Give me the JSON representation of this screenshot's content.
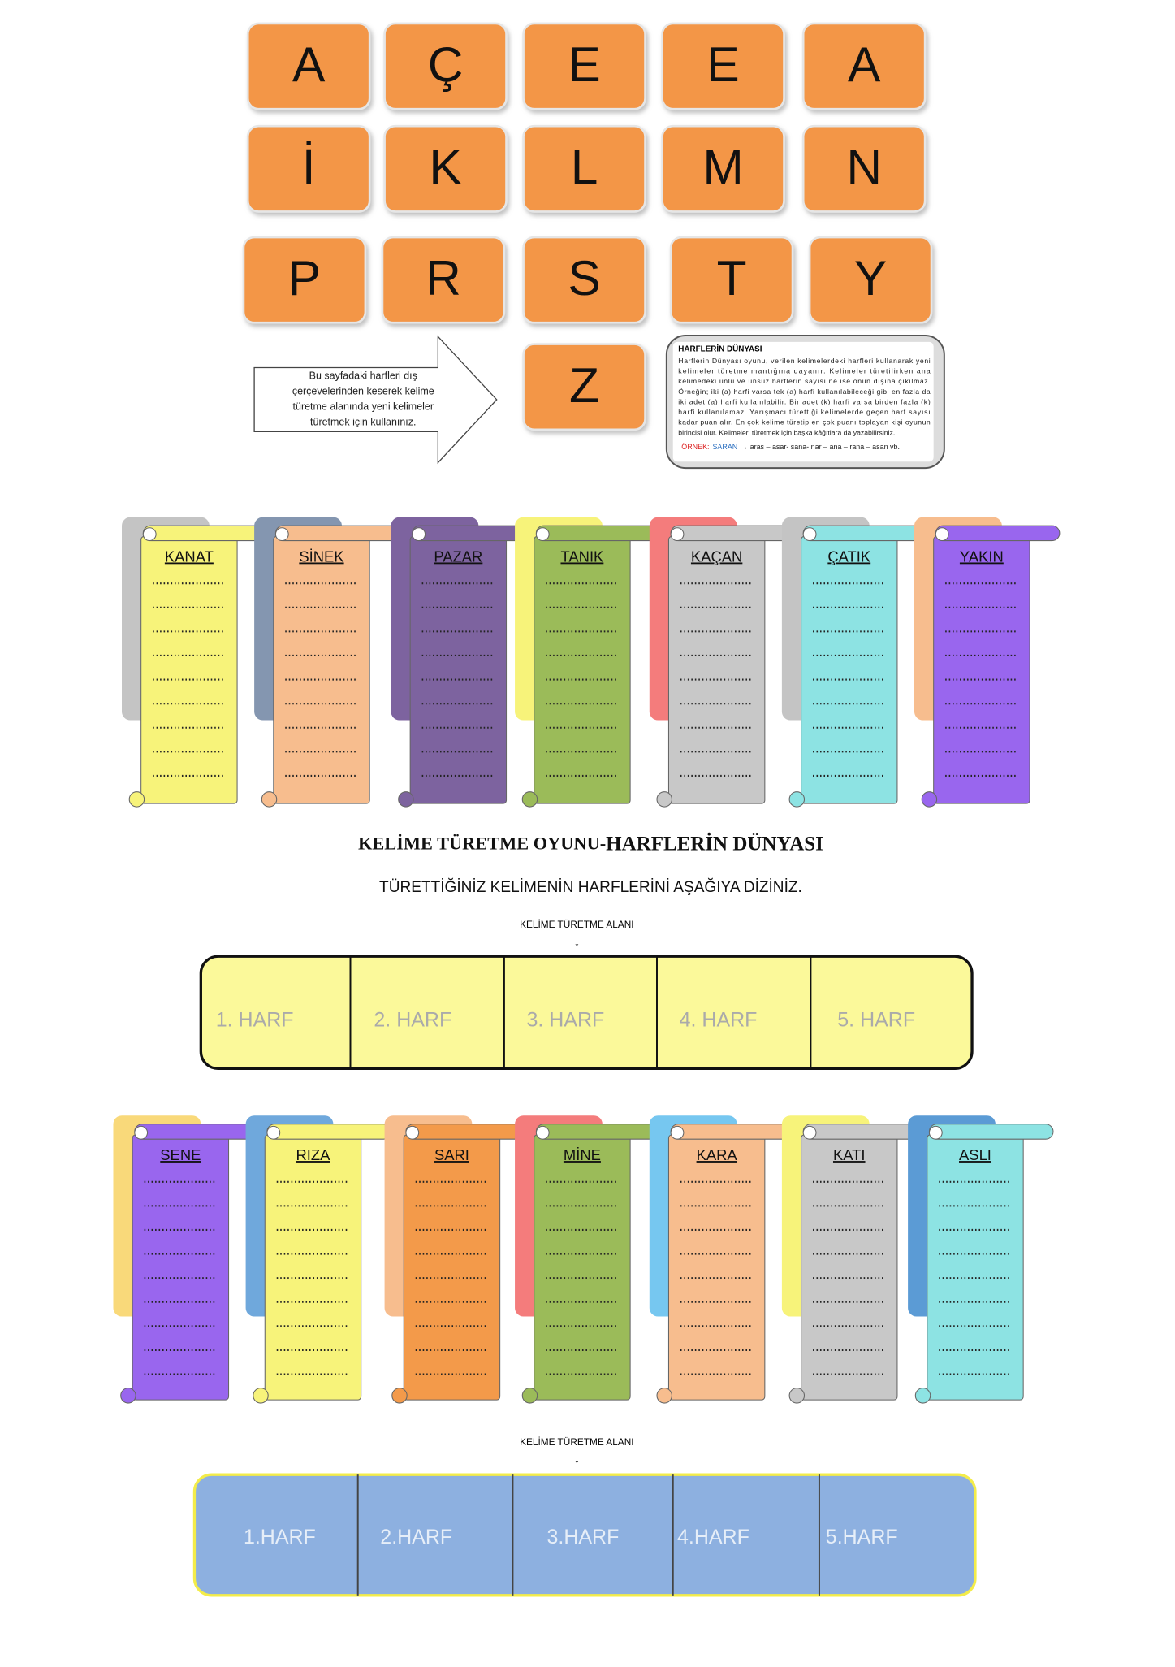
{
  "letters": [
    "A",
    "Ç",
    "E",
    "E",
    "A",
    "İ",
    "K",
    "L",
    "M",
    "N",
    "P",
    "R",
    "S",
    "T",
    "Y",
    "Z"
  ],
  "instruction": [
    "Bu sayfadaki harfleri dış",
    "çerçevelerinden keserek kelime",
    "türetme alanında yeni kelimeler",
    "türetmek için kullanınız."
  ],
  "info": {
    "title": "HARFLERİN DÜNYASI",
    "lines": [
      "Harflerin Dünyası oyunu, verilen kelimelerdeki harfleri kullanarak yeni",
      "kelimeler türetme mantığına dayanır. Kelimeler türetilirken ana",
      "kelimedeki ünlü ve ünsüz harflerin sayısı ne ise onun dışına çıkılmaz.",
      "Örneğin; iki (a) harfi varsa tek (a) harfi kullanılabileceği gibi en fazla da",
      "iki adet (a) harfi kullanılabilir. Bir adet (k) harfi varsa birden fazla (k)",
      "harfi kullanılamaz. Yarışmacı türettiği kelimelerde geçen harf sayısı",
      "kadar puan alır. En çok kelime türetip en çok puanı toplayan kişi oyunun",
      "birincisi olur. Kelimeleri türetmek için başka kâğıtlara da yazabilirsiniz."
    ],
    "example_label": "ÖRNEK:",
    "example_word": "SARAN",
    "example_rest": "→ aras – asar- sana- nar – ana – rana – asan vb."
  },
  "scrolls_top": [
    "KANAT",
    "SİNEK",
    "PAZAR",
    "TANIK",
    "KAÇAN",
    "ÇATIK",
    "YAKIN"
  ],
  "title_left": "KELİME TÜRETME OYUNU-",
  "title_right": "HARFLERİN DÜNYASI",
  "subtitle": "TÜRETTİĞİNİZ KELİMENİN HARFLERİNİ AŞAĞIYA DİZİNİZ.",
  "area1": {
    "label": "KELİME TÜRETME ALANI",
    "arrow": "↓",
    "slots": [
      "1. HARF",
      "2. HARF",
      "3. HARF",
      "4. HARF",
      "5. HARF"
    ]
  },
  "scrolls_bottom": [
    "SENE",
    "RIZA",
    "SARI",
    "MİNE",
    "KARA",
    "KATI",
    "ASLI"
  ],
  "area2": {
    "label": "KELİME TÜRETME ALANI",
    "arrow": "↓",
    "slots": [
      "1.HARF",
      "2.HARF",
      "3.HARF",
      "4.HARF",
      "5.HARF"
    ]
  }
}
